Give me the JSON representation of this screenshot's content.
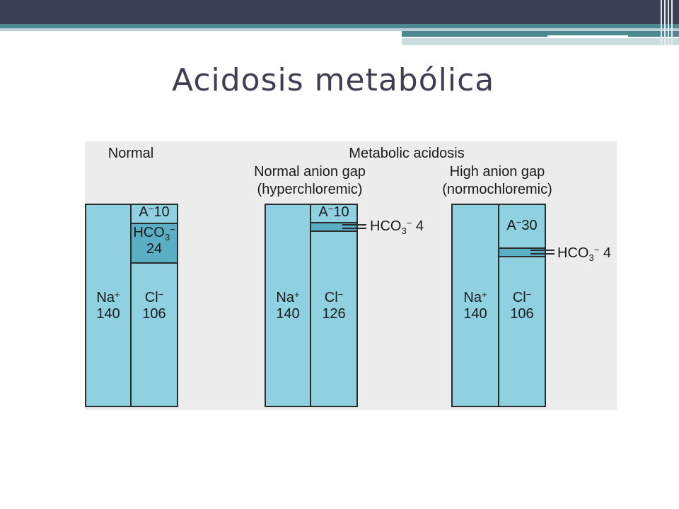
{
  "slide": {
    "title": "Acidosis metabólica"
  },
  "figure": {
    "panel_normal": {
      "heading": "Normal",
      "cation": {
        "symbol": "Na",
        "charge": "+",
        "value": "140"
      },
      "anion_gap": {
        "symbol": "A",
        "charge": "−",
        "value": "10"
      },
      "bicarbonate": {
        "symbol": "HCO",
        "subscript": "3",
        "charge": "−",
        "value": "24"
      },
      "chloride": {
        "symbol": "Cl",
        "charge": "−",
        "value": "106"
      }
    },
    "group_heading": "Metabolic acidosis",
    "panel_normal_gap": {
      "heading_line1": "Normal anion gap",
      "heading_line2": "(hyperchloremic)",
      "cation": {
        "symbol": "Na",
        "charge": "+",
        "value": "140"
      },
      "anion_gap": {
        "symbol": "A",
        "charge": "−",
        "value": "10"
      },
      "bicarbonate": {
        "symbol": "HCO",
        "subscript": "3",
        "charge": "−",
        "value": "4"
      },
      "chloride": {
        "symbol": "Cl",
        "charge": "−",
        "value": "126"
      }
    },
    "panel_high_gap": {
      "heading_line1": "High anion gap",
      "heading_line2": "(normochloremic)",
      "cation": {
        "symbol": "Na",
        "charge": "+",
        "value": "140"
      },
      "anion_gap": {
        "symbol": "A",
        "charge": "−",
        "value": "30"
      },
      "bicarbonate": {
        "symbol": "HCO",
        "subscript": "3",
        "charge": "−",
        "value": "4"
      },
      "chloride": {
        "symbol": "Cl",
        "charge": "−",
        "value": "106"
      }
    }
  },
  "colors": {
    "title": "#3d3f52",
    "topbar": "#3d3f52",
    "accent_stripe": "#4e8893",
    "column_fill": "#8fd1e0",
    "bicarbonate_fill": "#5bafc4",
    "figure_background": "#ececec"
  }
}
